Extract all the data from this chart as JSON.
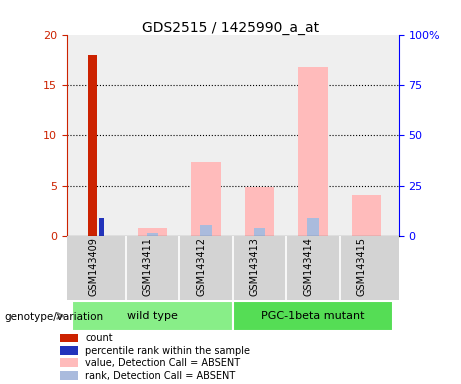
{
  "title": "GDS2515 / 1425990_a_at",
  "samples": [
    "GSM143409",
    "GSM143411",
    "GSM143412",
    "GSM143413",
    "GSM143414",
    "GSM143415"
  ],
  "count_values": [
    18,
    0,
    0,
    0,
    0,
    0
  ],
  "count_color": "#cc2200",
  "percentile_values": [
    9,
    0,
    0,
    0,
    0,
    0
  ],
  "percentile_color": "#2233bb",
  "absent_value_values": [
    0,
    0.8,
    7.4,
    4.9,
    16.8,
    4.1
  ],
  "absent_value_color": "#ffbbbb",
  "absent_rank_values": [
    0,
    1.7,
    5.6,
    4.1,
    9.2,
    0
  ],
  "absent_rank_color": "#aabbdd",
  "ylim_left": [
    0,
    20
  ],
  "ylim_right": [
    0,
    100
  ],
  "yticks_left": [
    0,
    5,
    10,
    15,
    20
  ],
  "yticks_right": [
    0,
    25,
    50,
    75,
    100
  ],
  "yticklabels_right": [
    "0",
    "25",
    "50",
    "75",
    "100%"
  ],
  "bg_plot": "#efefef",
  "bg_sample": "#d3d3d3",
  "bg_wildtype": "#88ee88",
  "bg_mutant": "#55dd55",
  "label_count": "count",
  "label_percentile": "percentile rank within the sample",
  "label_absent_value": "value, Detection Call = ABSENT",
  "label_absent_rank": "rank, Detection Call = ABSENT",
  "genotype_label": "genotype/variation"
}
